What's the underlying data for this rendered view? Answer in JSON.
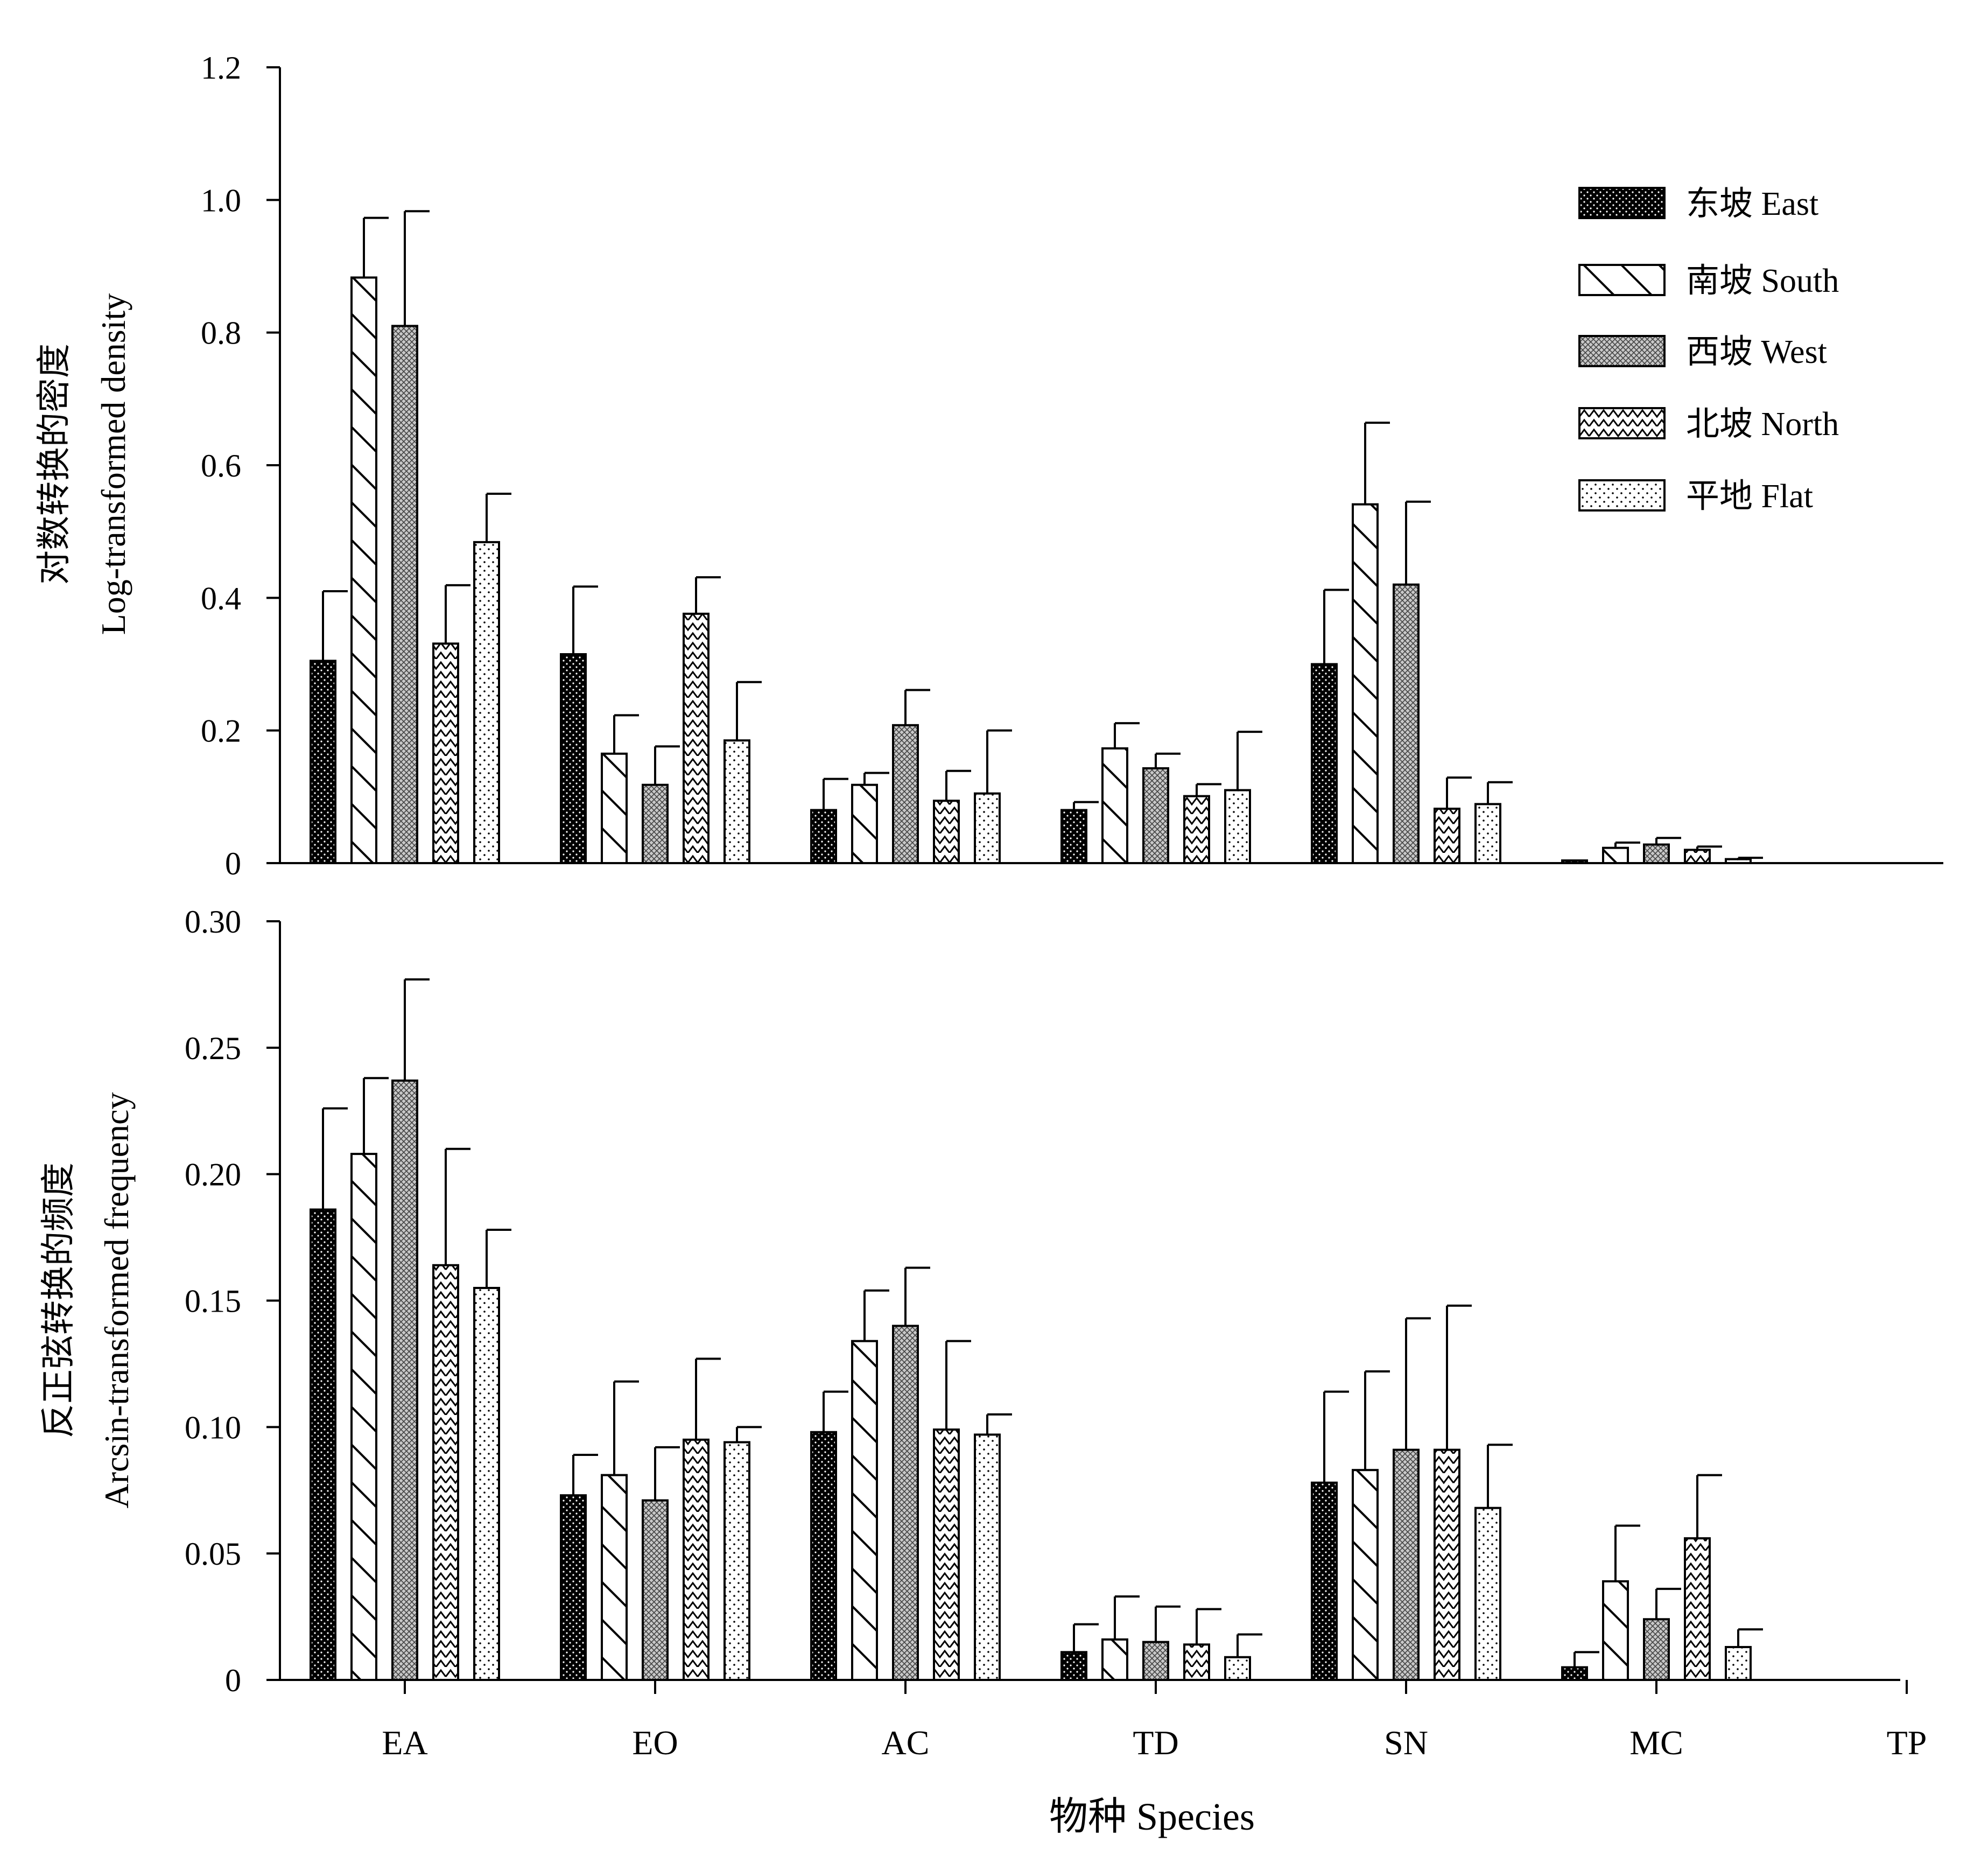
{
  "chart_data": [
    {
      "type": "bar",
      "panel": "top",
      "ylabel_cn": "对数转换的密度",
      "ylabel_en": "Log-transformed density",
      "ylim": [
        0,
        1.2
      ],
      "yticks": [
        "0",
        "0.2",
        "0.4",
        "0.6",
        "0.8",
        "1.0",
        "1.2"
      ],
      "categories": [
        "EA",
        "EO",
        "AC",
        "TD",
        "SN",
        "MC",
        "TP"
      ],
      "series": [
        {
          "name": "东坡  East",
          "values": [
            0.305,
            0.315,
            0.08,
            0.08,
            0.3,
            0.004,
            0
          ],
          "errors": [
            0.105,
            0.102,
            0.047,
            0.012,
            0.112,
            0.0,
            0
          ]
        },
        {
          "name": "南坡  South",
          "values": [
            0.883,
            0.165,
            0.118,
            0.173,
            0.541,
            0.023,
            0
          ],
          "errors": [
            0.09,
            0.058,
            0.018,
            0.038,
            0.123,
            0.008,
            0
          ]
        },
        {
          "name": "西坡  West",
          "values": [
            0.81,
            0.118,
            0.208,
            0.143,
            0.42,
            0.028,
            0
          ],
          "errors": [
            0.173,
            0.058,
            0.053,
            0.022,
            0.125,
            0.01,
            0
          ]
        },
        {
          "name": "北坡  North",
          "values": [
            0.331,
            0.376,
            0.094,
            0.101,
            0.082,
            0.02,
            0
          ],
          "errors": [
            0.088,
            0.055,
            0.045,
            0.018,
            0.047,
            0.005,
            0
          ]
        },
        {
          "name": "平地  Flat",
          "values": [
            0.484,
            0.185,
            0.105,
            0.11,
            0.089,
            0.006,
            0
          ],
          "errors": [
            0.073,
            0.088,
            0.095,
            0.088,
            0.033,
            0.002,
            0
          ]
        }
      ],
      "legend_position": "top-right"
    },
    {
      "type": "bar",
      "panel": "bottom",
      "ylabel_cn": "反正弦转换的频度",
      "ylabel_en": "Arcsin-transformed frequency",
      "xlabel": "物种 Species",
      "ylim": [
        0,
        0.3
      ],
      "yticks": [
        "0",
        "0.05",
        "0.10",
        "0.15",
        "0.20",
        "0.25",
        "0.30"
      ],
      "categories": [
        "EA",
        "EO",
        "AC",
        "TD",
        "SN",
        "MC",
        "TP"
      ],
      "series": [
        {
          "name": "东坡  East",
          "values": [
            0.186,
            0.073,
            0.098,
            0.011,
            0.078,
            0.005,
            0
          ],
          "errors": [
            0.04,
            0.016,
            0.016,
            0.011,
            0.036,
            0.006,
            0
          ]
        },
        {
          "name": "南坡  South",
          "values": [
            0.208,
            0.081,
            0.134,
            0.016,
            0.083,
            0.039,
            0
          ],
          "errors": [
            0.03,
            0.037,
            0.02,
            0.017,
            0.039,
            0.022,
            0
          ]
        },
        {
          "name": "西坡  West",
          "values": [
            0.237,
            0.071,
            0.14,
            0.015,
            0.091,
            0.024,
            0
          ],
          "errors": [
            0.04,
            0.021,
            0.023,
            0.014,
            0.052,
            0.012,
            0
          ]
        },
        {
          "name": "北坡  North",
          "values": [
            0.164,
            0.095,
            0.099,
            0.014,
            0.091,
            0.056,
            0
          ],
          "errors": [
            0.046,
            0.032,
            0.035,
            0.014,
            0.057,
            0.025,
            0
          ]
        },
        {
          "name": "平地  Flat",
          "values": [
            0.155,
            0.094,
            0.097,
            0.009,
            0.068,
            0.013,
            0
          ],
          "errors": [
            0.023,
            0.006,
            0.008,
            0.009,
            0.025,
            0.007,
            0
          ]
        }
      ]
    }
  ],
  "colors": {
    "axis": "#000000",
    "east": "#000000",
    "west": "#8c8c8c",
    "background": "#ffffff"
  }
}
